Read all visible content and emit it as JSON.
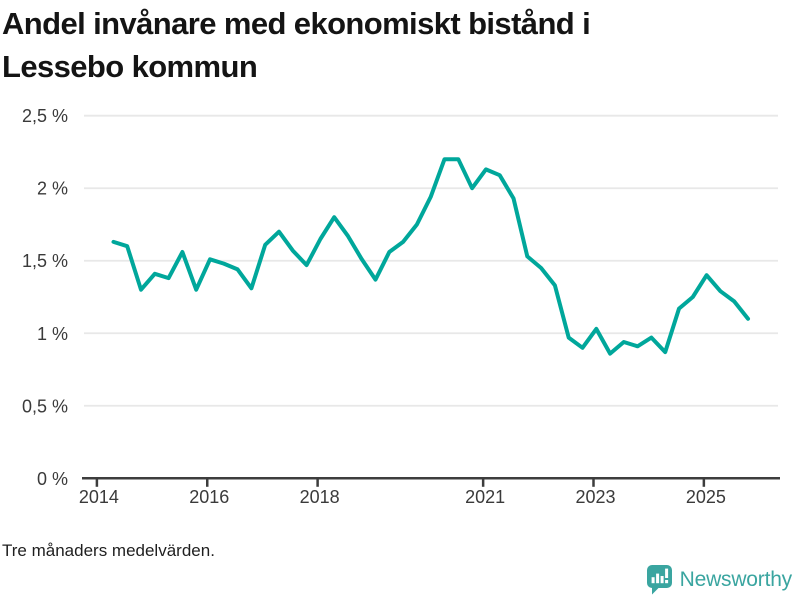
{
  "title": {
    "line1": "Andel invånare med ekonomiskt bistånd i",
    "line2": "Lessebo kommun"
  },
  "footnote": "Tre månaders medelvärden.",
  "logo": {
    "text": "Newsworthy",
    "icon": "newsworthy-speech-bubble-bar-chart-icon",
    "color": "#3aa5a0"
  },
  "chart_data": {
    "type": "line",
    "title": "Andel invånare med ekonomiskt bistånd i Lessebo kommun",
    "subtitle_note": "Tre månaders medelvärden.",
    "unit": "%",
    "series_name": "Andel invånare med ekonomiskt bistånd",
    "line_color": "#00a79b",
    "grid": "horizontal",
    "legend": "none",
    "ylim": [
      0,
      2.5
    ],
    "xlim": [
      2013.73,
      2026.38
    ],
    "x_start": 2014.3,
    "x_step_years": 0.25,
    "x": [
      2014.3,
      2014.55,
      2014.8,
      2015.05,
      2015.3,
      2015.55,
      2015.8,
      2016.05,
      2016.3,
      2016.55,
      2016.8,
      2017.05,
      2017.3,
      2017.55,
      2017.8,
      2018.05,
      2018.3,
      2018.55,
      2018.8,
      2019.05,
      2019.3,
      2019.55,
      2019.8,
      2020.05,
      2020.3,
      2020.55,
      2020.8,
      2021.05,
      2021.3,
      2021.55,
      2021.8,
      2022.05,
      2022.3,
      2022.55,
      2022.8,
      2023.05,
      2023.3,
      2023.55,
      2023.8,
      2024.05,
      2024.3,
      2024.55,
      2024.8,
      2025.05,
      2025.3,
      2025.55,
      2025.8
    ],
    "values": [
      1.63,
      1.6,
      1.3,
      1.41,
      1.38,
      1.56,
      1.3,
      1.51,
      1.48,
      1.44,
      1.31,
      1.61,
      1.7,
      1.57,
      1.47,
      1.65,
      1.8,
      1.67,
      1.51,
      1.37,
      1.56,
      1.63,
      1.75,
      1.94,
      2.2,
      2.2,
      2.0,
      2.13,
      2.09,
      1.93,
      1.53,
      1.45,
      1.33,
      0.97,
      0.9,
      1.03,
      0.86,
      0.94,
      0.91,
      0.97,
      0.87,
      1.17,
      1.25,
      1.4,
      1.29,
      1.22,
      1.1
    ],
    "y_ticks": [
      {
        "value": 0,
        "label": "0 %"
      },
      {
        "value": 0.5,
        "label": "0,5 %"
      },
      {
        "value": 1,
        "label": "1 %"
      },
      {
        "value": 1.5,
        "label": "1,5 %"
      },
      {
        "value": 2,
        "label": "2 %"
      },
      {
        "value": 2.5,
        "label": "2,5 %"
      }
    ],
    "x_ticks": [
      {
        "value": 2014,
        "label": "2014"
      },
      {
        "value": 2016,
        "label": "2016"
      },
      {
        "value": 2018,
        "label": "2018"
      },
      {
        "value": 2021,
        "label": "2021"
      },
      {
        "value": 2023,
        "label": "2023"
      },
      {
        "value": 2025,
        "label": "2025"
      }
    ]
  }
}
